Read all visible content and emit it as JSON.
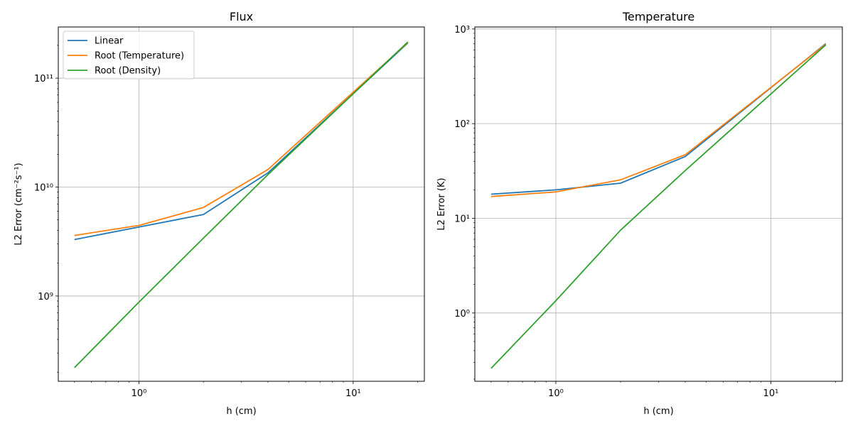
{
  "chart_data": [
    {
      "type": "line",
      "title": "Flux",
      "xlabel": "h (cm)",
      "ylabel": "L2 Error (cm⁻²s⁻¹)",
      "xscale": "log",
      "yscale": "log",
      "xlim": [
        0.42,
        21.5
      ],
      "ylim": [
        165000000.0,
        295000000000.0
      ],
      "grid": true,
      "legend": "upper-left",
      "x_ticks": [
        {
          "value": 1,
          "label": "10⁰"
        },
        {
          "value": 10,
          "label": "10¹"
        }
      ],
      "y_ticks": [
        {
          "value": 1000000000.0,
          "label": "10⁹"
        },
        {
          "value": 10000000000.0,
          "label": "10¹⁰"
        },
        {
          "value": 100000000000.0,
          "label": "10¹¹"
        }
      ],
      "x": [
        0.5,
        1,
        2,
        4,
        18
      ],
      "series": [
        {
          "name": "Linear",
          "color": "#1f77b4",
          "values": [
            3300000000.0,
            4300000000.0,
            5600000000.0,
            13500000000.0,
            210000000000.0
          ]
        },
        {
          "name": "Root (Temperature)",
          "color": "#ff7f0e",
          "values": [
            3600000000.0,
            4450000000.0,
            6500000000.0,
            14500000000.0,
            212000000000.0
          ]
        },
        {
          "name": "Root (Density)",
          "color": "#2ca02c",
          "values": [
            220000000.0,
            880000000.0,
            3400000000.0,
            13000000000.0,
            215000000000.0
          ]
        }
      ]
    },
    {
      "type": "line",
      "title": "Temperature",
      "xlabel": "h (cm)",
      "ylabel": "L2 Error (K)",
      "xscale": "log",
      "yscale": "log",
      "xlim": [
        0.42,
        21.5
      ],
      "ylim": [
        0.19,
        1050
      ],
      "grid": true,
      "legend": "none",
      "x_ticks": [
        {
          "value": 1,
          "label": "10⁰"
        },
        {
          "value": 10,
          "label": "10¹"
        }
      ],
      "y_ticks": [
        {
          "value": 1,
          "label": "10⁰"
        },
        {
          "value": 10,
          "label": "10¹"
        },
        {
          "value": 100,
          "label": "10²"
        },
        {
          "value": 1000,
          "label": "10³"
        }
      ],
      "x": [
        0.5,
        1,
        2,
        4,
        18
      ],
      "series": [
        {
          "name": "Linear",
          "color": "#1f77b4",
          "values": [
            18,
            20,
            23.5,
            45,
            700
          ]
        },
        {
          "name": "Root (Temperature)",
          "color": "#ff7f0e",
          "values": [
            17,
            19,
            25.5,
            47,
            690
          ]
        },
        {
          "name": "Root (Density)",
          "color": "#2ca02c",
          "values": [
            0.26,
            1.35,
            7.5,
            32,
            680
          ]
        }
      ]
    }
  ]
}
